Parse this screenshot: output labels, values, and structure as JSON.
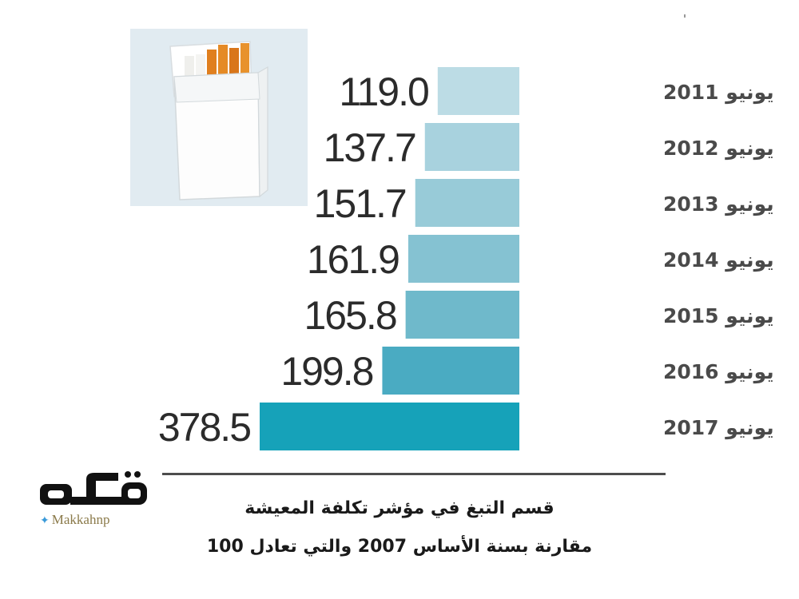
{
  "chart_data": {
    "type": "bar",
    "orientation": "horizontal",
    "categories": [
      "يونيو 2011",
      "يونيو 2012",
      "يونيو 2013",
      "يونيو 2014",
      "يونيو 2015",
      "يونيو 2016",
      "يونيو 2017"
    ],
    "values": [
      119.0,
      137.7,
      151.7,
      161.9,
      165.8,
      199.8,
      378.5
    ],
    "value_labels": [
      "119.0",
      "137.7",
      "151.7",
      "161.9",
      "165.8",
      "199.8",
      "378.5"
    ],
    "title": "قسم التبغ في مؤشر تكلفة المعيشة",
    "subtitle": "مقارنة بسنة الأساس 2007 والتي تعادل 100",
    "bar_colors": [
      "#bcdce5",
      "#a8d2de",
      "#98cbd8",
      "#85c2d2",
      "#6fb9cb",
      "#4aabc2",
      "#16a2b9"
    ],
    "grid": false
  },
  "branding": {
    "logo_text": "مكة",
    "handle": "Makkahnp",
    "handle_icon": "twitter-bird-icon"
  }
}
